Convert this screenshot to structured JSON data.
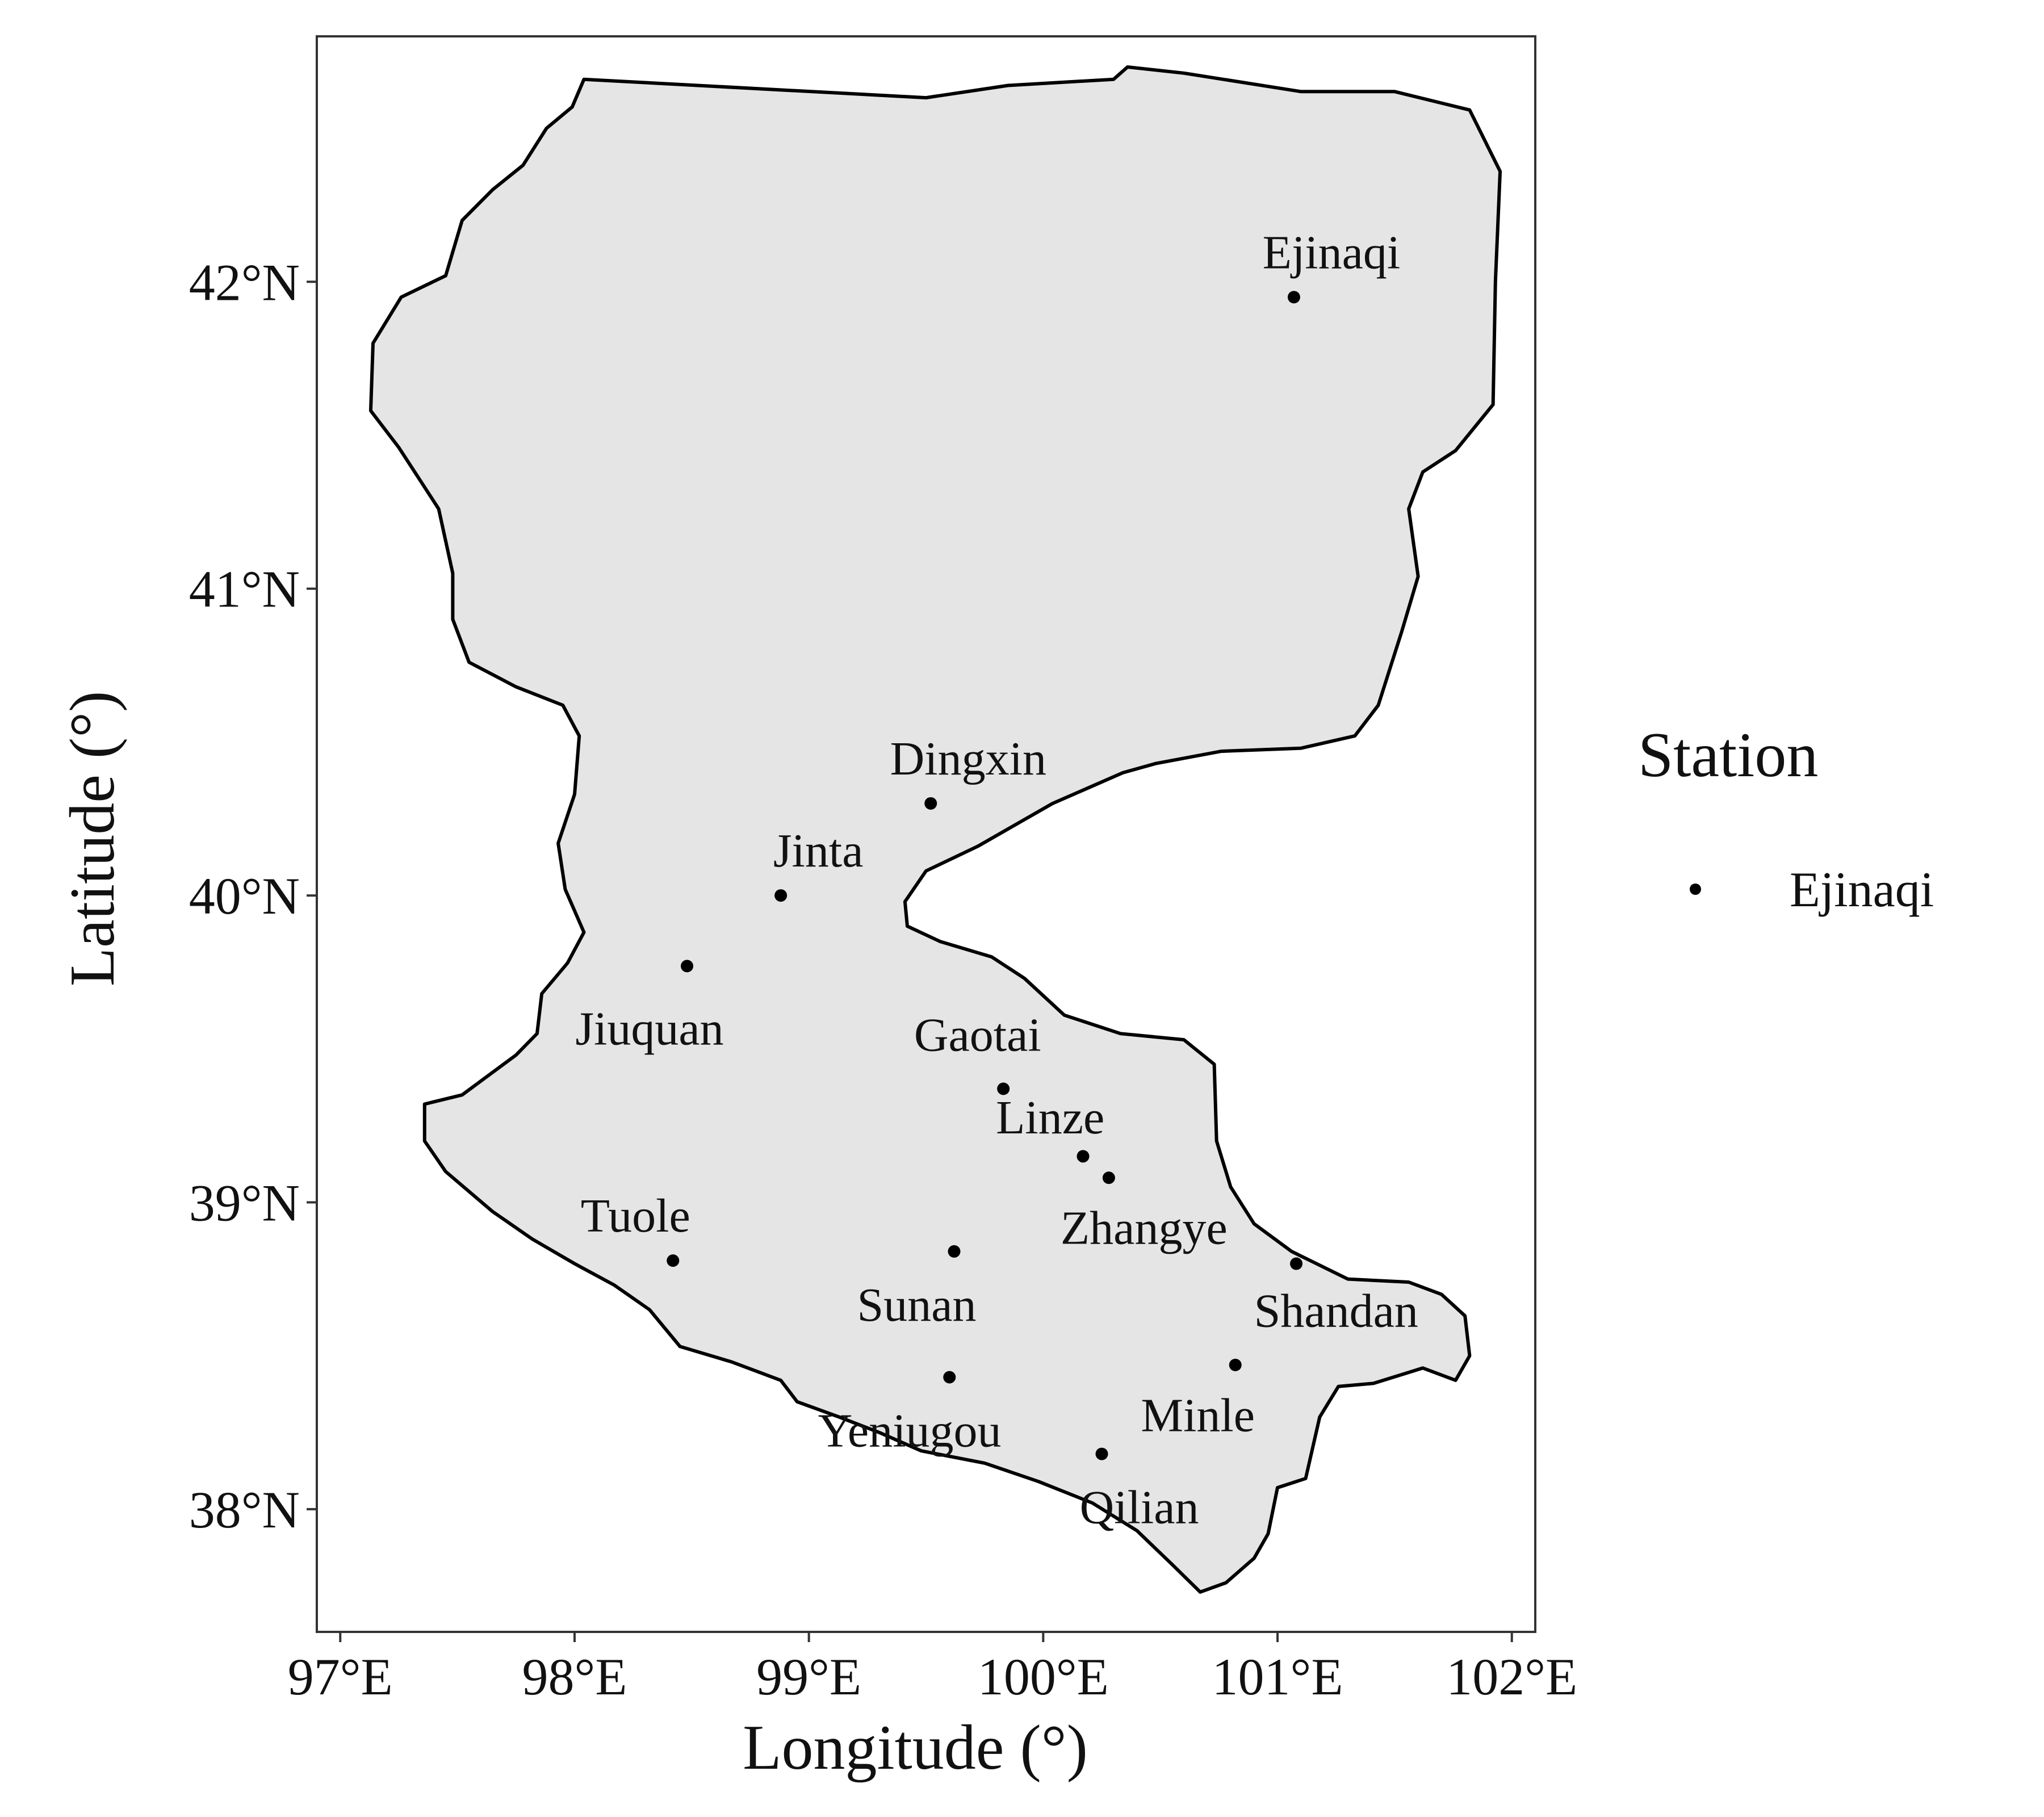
{
  "map": {
    "x_axis_title": "Longitude (°)",
    "y_axis_title": "Latitude (°)",
    "x_ticks": [
      {
        "value": 97,
        "label": "97°E"
      },
      {
        "value": 98,
        "label": "98°E"
      },
      {
        "value": 99,
        "label": "99°E"
      },
      {
        "value": 100,
        "label": "100°E"
      },
      {
        "value": 101,
        "label": "101°E"
      },
      {
        "value": 102,
        "label": "102°E"
      }
    ],
    "y_ticks": [
      {
        "value": 38,
        "label": "38°N"
      },
      {
        "value": 39,
        "label": "39°N"
      },
      {
        "value": 40,
        "label": "40°N"
      },
      {
        "value": 41,
        "label": "41°N"
      },
      {
        "value": 42,
        "label": "42°N"
      }
    ],
    "xlim": [
      96.9,
      102.1
    ],
    "ylim": [
      37.6,
      42.8
    ],
    "region_fill": "#e5e5e5",
    "region_outline": [
      [
        98.04,
        42.66
      ],
      [
        99.5,
        42.6
      ],
      [
        99.85,
        42.64
      ],
      [
        100.3,
        42.66
      ],
      [
        100.36,
        42.7
      ],
      [
        100.6,
        42.68
      ],
      [
        101.1,
        42.62
      ],
      [
        101.5,
        42.62
      ],
      [
        101.82,
        42.56
      ],
      [
        101.95,
        42.36
      ],
      [
        101.93,
        42.0
      ],
      [
        101.92,
        41.6
      ],
      [
        101.76,
        41.45
      ],
      [
        101.62,
        41.38
      ],
      [
        101.56,
        41.26
      ],
      [
        101.6,
        41.04
      ],
      [
        101.53,
        40.86
      ],
      [
        101.43,
        40.62
      ],
      [
        101.33,
        40.52
      ],
      [
        101.1,
        40.48
      ],
      [
        100.76,
        40.47
      ],
      [
        100.48,
        40.43
      ],
      [
        100.34,
        40.4
      ],
      [
        100.04,
        40.3
      ],
      [
        99.72,
        40.16
      ],
      [
        99.5,
        40.08
      ],
      [
        99.41,
        39.98
      ],
      [
        99.42,
        39.9
      ],
      [
        99.56,
        39.85
      ],
      [
        99.78,
        39.8
      ],
      [
        99.92,
        39.73
      ],
      [
        100.09,
        39.61
      ],
      [
        100.33,
        39.55
      ],
      [
        100.6,
        39.53
      ],
      [
        100.73,
        39.45
      ],
      [
        100.74,
        39.2
      ],
      [
        100.8,
        39.05
      ],
      [
        100.9,
        38.93
      ],
      [
        101.06,
        38.84
      ],
      [
        101.3,
        38.75
      ],
      [
        101.56,
        38.74
      ],
      [
        101.7,
        38.7
      ],
      [
        101.8,
        38.63
      ],
      [
        101.82,
        38.5
      ],
      [
        101.76,
        38.42
      ],
      [
        101.62,
        38.46
      ],
      [
        101.41,
        38.41
      ],
      [
        101.26,
        38.4
      ],
      [
        101.18,
        38.3
      ],
      [
        101.12,
        38.1
      ],
      [
        101.0,
        38.07
      ],
      [
        100.96,
        37.92
      ],
      [
        100.9,
        37.84
      ],
      [
        100.78,
        37.76
      ],
      [
        100.67,
        37.73
      ],
      [
        100.55,
        37.82
      ],
      [
        100.4,
        37.93
      ],
      [
        100.21,
        38.02
      ],
      [
        99.98,
        38.09
      ],
      [
        99.75,
        38.15
      ],
      [
        99.48,
        38.19
      ],
      [
        99.3,
        38.25
      ],
      [
        99.13,
        38.3
      ],
      [
        98.95,
        38.35
      ],
      [
        98.88,
        38.42
      ],
      [
        98.67,
        38.48
      ],
      [
        98.45,
        38.53
      ],
      [
        98.32,
        38.65
      ],
      [
        98.17,
        38.73
      ],
      [
        98.0,
        38.8
      ],
      [
        97.82,
        38.88
      ],
      [
        97.65,
        38.97
      ],
      [
        97.45,
        39.1
      ],
      [
        97.36,
        39.2
      ],
      [
        97.36,
        39.32
      ],
      [
        97.52,
        39.35
      ],
      [
        97.75,
        39.48
      ],
      [
        97.84,
        39.55
      ],
      [
        97.86,
        39.68
      ],
      [
        97.97,
        39.78
      ],
      [
        98.04,
        39.88
      ],
      [
        97.96,
        40.02
      ],
      [
        97.93,
        40.17
      ],
      [
        98.0,
        40.33
      ],
      [
        98.02,
        40.52
      ],
      [
        97.95,
        40.62
      ],
      [
        97.75,
        40.68
      ],
      [
        97.55,
        40.76
      ],
      [
        97.48,
        40.9
      ],
      [
        97.48,
        41.05
      ],
      [
        97.42,
        41.26
      ],
      [
        97.25,
        41.46
      ],
      [
        97.13,
        41.58
      ],
      [
        97.14,
        41.8
      ],
      [
        97.26,
        41.95
      ],
      [
        97.45,
        42.02
      ],
      [
        97.52,
        42.2
      ],
      [
        97.65,
        42.3
      ],
      [
        97.78,
        42.38
      ],
      [
        97.88,
        42.5
      ],
      [
        97.99,
        42.57
      ]
    ],
    "stations": [
      {
        "name": "Ejinaqi",
        "lon": 101.07,
        "lat": 41.95,
        "label_dx": 0.16,
        "label_dy": 0.15
      },
      {
        "name": "Dingxin",
        "lon": 99.52,
        "lat": 40.3,
        "label_dx": 0.16,
        "label_dy": 0.15
      },
      {
        "name": "Jinta",
        "lon": 98.88,
        "lat": 40.0,
        "label_dx": 0.16,
        "label_dy": 0.15
      },
      {
        "name": "Jiuquan",
        "lon": 98.48,
        "lat": 39.77,
        "label_dx": -0.16,
        "label_dy": -0.2
      },
      {
        "name": "Gaotai",
        "lon": 99.83,
        "lat": 39.37,
        "label_dx": -0.11,
        "label_dy": 0.18
      },
      {
        "name": "Linze",
        "lon": 100.17,
        "lat": 39.15,
        "label_dx": -0.14,
        "label_dy": 0.13
      },
      {
        "name": "Zhangye",
        "lon": 100.28,
        "lat": 39.08,
        "label_dx": 0.15,
        "label_dy": -0.16
      },
      {
        "name": "Tuole",
        "lon": 98.42,
        "lat": 38.81,
        "label_dx": -0.16,
        "label_dy": 0.15
      },
      {
        "name": "Sunan",
        "lon": 99.62,
        "lat": 38.84,
        "label_dx": -0.16,
        "label_dy": -0.17
      },
      {
        "name": "Shandan",
        "lon": 101.08,
        "lat": 38.8,
        "label_dx": 0.17,
        "label_dy": -0.15
      },
      {
        "name": "Minle",
        "lon": 100.82,
        "lat": 38.47,
        "label_dx": -0.16,
        "label_dy": -0.16
      },
      {
        "name": "Yeniugou",
        "lon": 99.6,
        "lat": 38.43,
        "label_dx": -0.17,
        "label_dy": -0.17
      },
      {
        "name": "Qilian",
        "lon": 100.25,
        "lat": 38.18,
        "label_dx": 0.16,
        "label_dy": -0.17
      }
    ]
  },
  "legend": {
    "title": "Station",
    "entry": "Ejinaqi"
  }
}
